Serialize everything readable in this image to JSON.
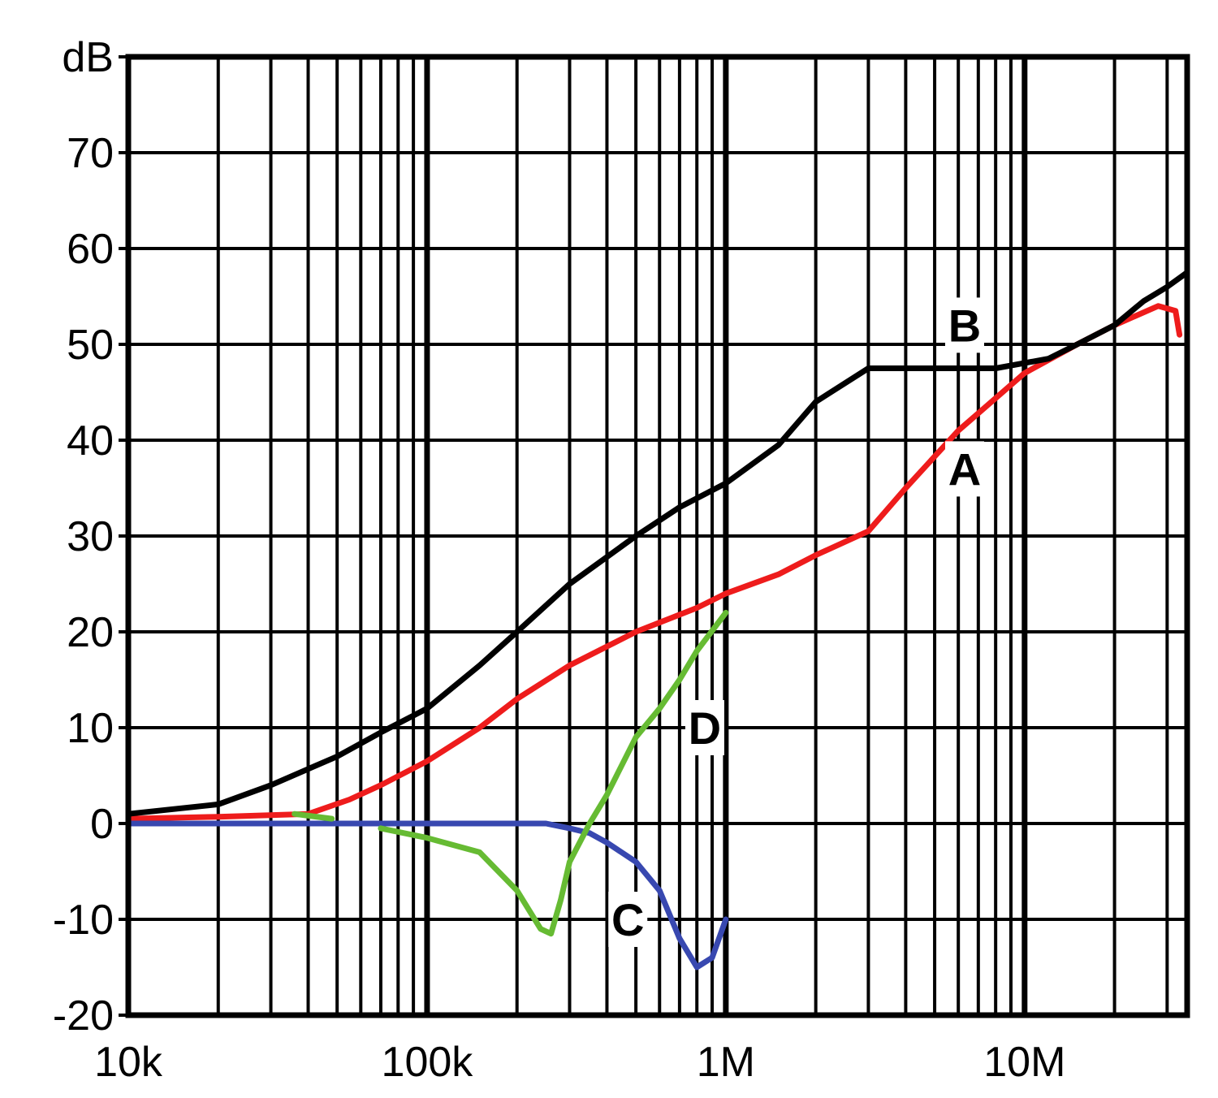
{
  "chart_data": {
    "type": "line",
    "title": "",
    "xlabel": "",
    "ylabel": "dB",
    "x_scale": "log",
    "x_range": [
      10000,
      35000000
    ],
    "y_range": [
      -20,
      80
    ],
    "grid": true,
    "y_ticks": [
      {
        "value": 80,
        "label": "dB"
      },
      {
        "value": 70,
        "label": "70"
      },
      {
        "value": 60,
        "label": "60"
      },
      {
        "value": 50,
        "label": "50"
      },
      {
        "value": 40,
        "label": "40"
      },
      {
        "value": 30,
        "label": "30"
      },
      {
        "value": 20,
        "label": "20"
      },
      {
        "value": 10,
        "label": "10"
      },
      {
        "value": 0,
        "label": "0"
      },
      {
        "value": -10,
        "label": "-10"
      },
      {
        "value": -20,
        "label": "-20"
      }
    ],
    "x_ticks": [
      {
        "value": 10000,
        "label": "10k"
      },
      {
        "value": 100000,
        "label": "100k"
      },
      {
        "value": 1000000,
        "label": "1M"
      },
      {
        "value": 10000000,
        "label": "10M"
      }
    ],
    "series": [
      {
        "name": "A",
        "color": "#ee1c1c",
        "label_at": [
          6300000,
          37
        ],
        "points": [
          [
            10000,
            0.5
          ],
          [
            20000,
            0.7
          ],
          [
            40000,
            1
          ],
          [
            55000,
            2.5
          ],
          [
            70000,
            4
          ],
          [
            100000,
            6.5
          ],
          [
            150000,
            10
          ],
          [
            200000,
            13
          ],
          [
            300000,
            16.5
          ],
          [
            500000,
            20
          ],
          [
            800000,
            22.5
          ],
          [
            1000000,
            24
          ],
          [
            1500000,
            26
          ],
          [
            2000000,
            28
          ],
          [
            3000000,
            30.5
          ],
          [
            4000000,
            35
          ],
          [
            6000000,
            41
          ],
          [
            10000000,
            47
          ],
          [
            15000000,
            50
          ],
          [
            20000000,
            52
          ],
          [
            28000000,
            54
          ],
          [
            32000000,
            53.5
          ],
          [
            33000000,
            51
          ]
        ]
      },
      {
        "name": "B",
        "color": "#000000",
        "label_at": [
          6300000,
          52
        ],
        "points": [
          [
            10000,
            1
          ],
          [
            20000,
            2
          ],
          [
            30000,
            4
          ],
          [
            50000,
            7
          ],
          [
            70000,
            9.5
          ],
          [
            100000,
            12
          ],
          [
            150000,
            16.5
          ],
          [
            200000,
            20
          ],
          [
            300000,
            25
          ],
          [
            500000,
            30
          ],
          [
            700000,
            33
          ],
          [
            1000000,
            35.5
          ],
          [
            1500000,
            39.5
          ],
          [
            2000000,
            44
          ],
          [
            3000000,
            47.5
          ],
          [
            5000000,
            47.5
          ],
          [
            8000000,
            47.5
          ],
          [
            12000000,
            48.5
          ],
          [
            15000000,
            50
          ],
          [
            20000000,
            52
          ],
          [
            25000000,
            54.5
          ],
          [
            30000000,
            56
          ],
          [
            35000000,
            57.5
          ]
        ]
      },
      {
        "name": "C",
        "color": "#3848b0",
        "label_at": [
          470000,
          -10
        ],
        "points": [
          [
            10000,
            0
          ],
          [
            50000,
            0
          ],
          [
            100000,
            0
          ],
          [
            200000,
            0
          ],
          [
            250000,
            0
          ],
          [
            300000,
            -0.5
          ],
          [
            350000,
            -1
          ],
          [
            400000,
            -2
          ],
          [
            500000,
            -4
          ],
          [
            600000,
            -7
          ],
          [
            700000,
            -12
          ],
          [
            800000,
            -15
          ],
          [
            900000,
            -14
          ],
          [
            1000000,
            -10
          ]
        ]
      },
      {
        "name": "D",
        "color": "#66bb33",
        "label_at": [
          850000,
          10
        ],
        "segments": [
          [
            [
              36000,
              1
            ],
            [
              48000,
              0.5
            ]
          ],
          [
            [
              70000,
              -0.5
            ],
            [
              100000,
              -1.5
            ],
            [
              150000,
              -3
            ],
            [
              200000,
              -7
            ],
            [
              240000,
              -11
            ],
            [
              260000,
              -11.5
            ],
            [
              280000,
              -8
            ],
            [
              300000,
              -4
            ],
            [
              350000,
              0
            ],
            [
              400000,
              3
            ],
            [
              500000,
              9
            ],
            [
              600000,
              12
            ],
            [
              700000,
              15
            ],
            [
              800000,
              18
            ],
            [
              1000000,
              22
            ]
          ]
        ]
      }
    ]
  }
}
